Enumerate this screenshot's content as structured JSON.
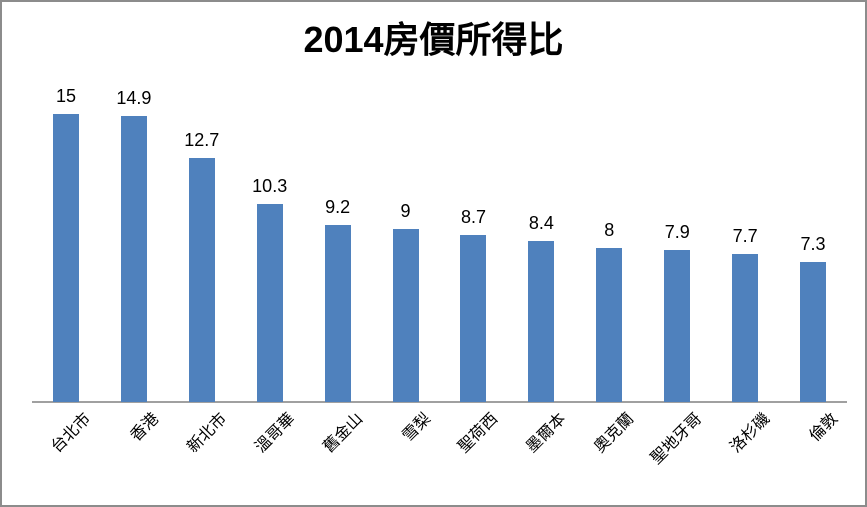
{
  "chart_data": {
    "type": "bar",
    "title": "2014房價所得比",
    "categories": [
      "台北市",
      "香港",
      "新北市",
      "溫哥華",
      "舊金山",
      "雪梨",
      "聖荷西",
      "墨爾本",
      "奧克蘭",
      "聖地牙哥",
      "洛杉磯",
      "倫敦"
    ],
    "values": [
      15,
      14.9,
      12.7,
      10.3,
      9.2,
      9,
      8.7,
      8.4,
      8,
      7.9,
      7.7,
      7.3
    ],
    "xlabel": "",
    "ylabel": "",
    "ylim": [
      0,
      15.6
    ],
    "grid": false,
    "legend": "none",
    "y_axis_visible": false,
    "data_labels": true,
    "category_label_rotation_deg": 45,
    "bar_color": "#4F81BD",
    "axis_line_color": "#A0A0A0",
    "frame_border_color": "#8C8C8C",
    "text_color": "#000000",
    "background_color": "#FFFFFF"
  }
}
